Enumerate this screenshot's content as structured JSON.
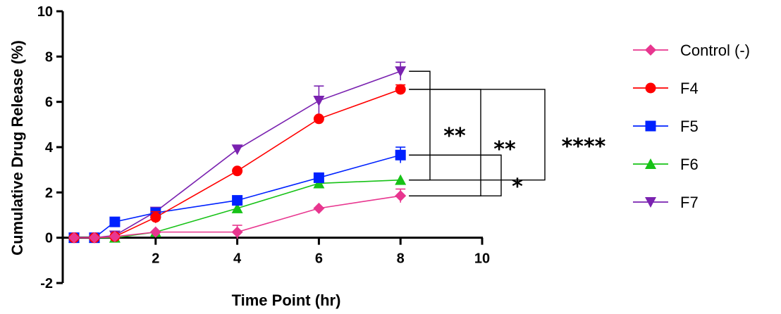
{
  "chart_data": {
    "type": "line",
    "xlabel": "Time Point (hr)",
    "ylabel": "Cumulative Drug Release (%)",
    "xlim": [
      -0.2,
      10
    ],
    "ylim": [
      -2,
      10
    ],
    "x_ticks": [
      2,
      4,
      6,
      8,
      10
    ],
    "y_ticks": [
      -2,
      0,
      2,
      4,
      6,
      8,
      10
    ],
    "x": [
      0,
      0.5,
      1,
      2,
      4,
      6,
      8
    ],
    "grid": false,
    "legend_position": "right",
    "series": [
      {
        "name": "Control (-)",
        "color": "#e8368f",
        "marker": "diamond",
        "values": [
          0,
          0,
          0.05,
          0.25,
          0.25,
          1.3,
          1.85
        ],
        "errors": [
          0,
          0,
          0,
          0,
          0.3,
          0,
          0.3
        ]
      },
      {
        "name": "F4",
        "color": "#ff0000",
        "marker": "circle",
        "values": [
          0,
          0,
          0.05,
          0.9,
          2.95,
          5.25,
          6.55
        ],
        "errors": [
          0,
          0,
          0,
          0.25,
          0,
          0,
          0.2
        ]
      },
      {
        "name": "F5",
        "color": "#0022ff",
        "marker": "square",
        "values": [
          0,
          0,
          0.7,
          1.1,
          1.65,
          2.65,
          3.65
        ],
        "errors": [
          0,
          0,
          0.15,
          0.1,
          0.1,
          0.15,
          0.35
        ]
      },
      {
        "name": "F6",
        "color": "#17c217",
        "marker": "triangle-up",
        "values": [
          0,
          0,
          0.0,
          0.25,
          1.3,
          2.4,
          2.55
        ],
        "errors": [
          0,
          0,
          0,
          0,
          0,
          0,
          0
        ]
      },
      {
        "name": "F7",
        "color": "#7a22b0",
        "marker": "triangle-down",
        "values": [
          0,
          0,
          0.1,
          1.15,
          3.9,
          6.05,
          7.35
        ],
        "errors": [
          0,
          0,
          0,
          0,
          0,
          0.65,
          0.4
        ]
      }
    ],
    "significance": [
      {
        "label": "**",
        "between": [
          "F7",
          "F6"
        ]
      },
      {
        "label": "**",
        "between": [
          "F4",
          "Control (-)"
        ]
      },
      {
        "label": "*",
        "between": [
          "F5",
          "Control (-)"
        ]
      },
      {
        "label": "****",
        "between": [
          "F4",
          "F6"
        ]
      }
    ]
  }
}
